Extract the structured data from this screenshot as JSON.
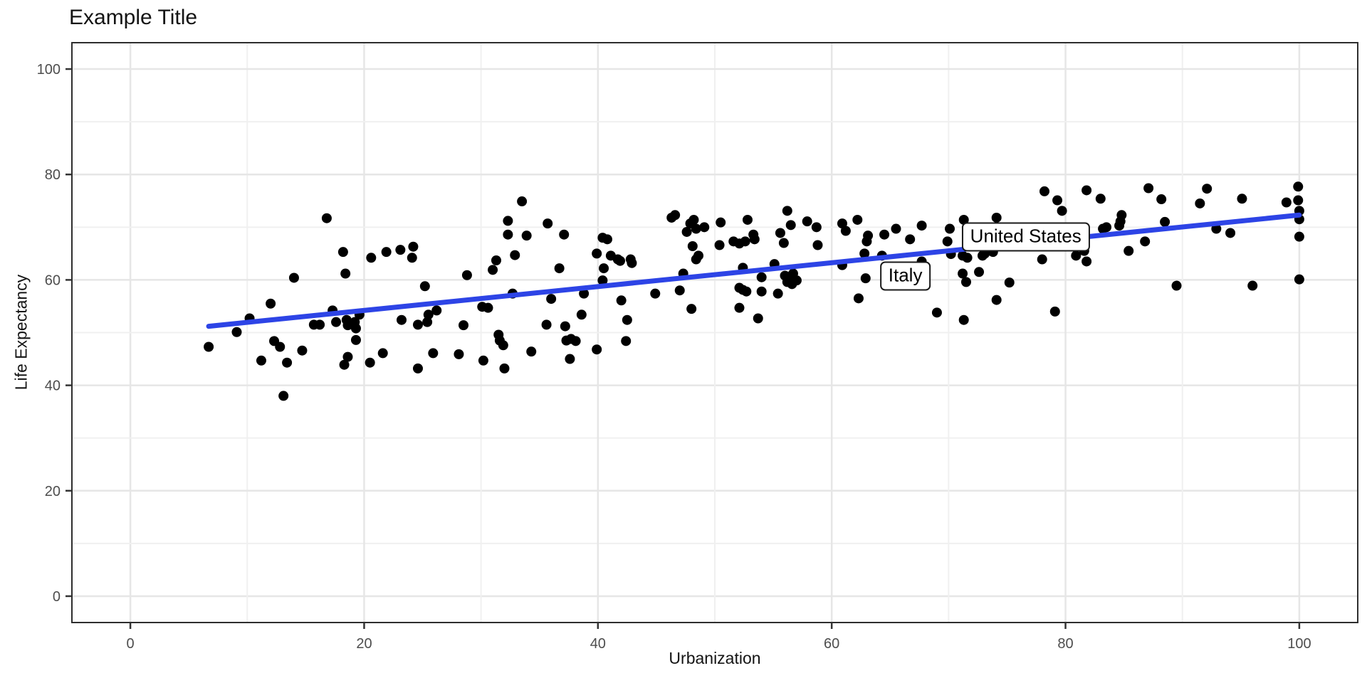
{
  "title": "Example Title",
  "colors": {
    "background": "#ffffff",
    "point": "#000000",
    "trend_line": "#2d44e6",
    "grid_major": "#e6e6e6",
    "grid_minor": "#f0f0f0",
    "panel_border": "#2e2e2e",
    "tick": "#333333",
    "tick_label": "#4d4d4d",
    "text": "#141414",
    "annotation_bg": "#ffffff",
    "annotation_border": "#1a1a1a"
  },
  "chart_data": {
    "type": "scatter",
    "title": "Example Title",
    "xlabel": "Urbanization",
    "ylabel": "Life Expectancy",
    "xlim": [
      -5,
      105
    ],
    "ylim": [
      -5,
      105
    ],
    "x_ticks": [
      0,
      20,
      40,
      60,
      80,
      100
    ],
    "y_ticks": [
      0,
      20,
      40,
      60,
      80,
      100
    ],
    "grid_step": 10,
    "grid_major_every": 20,
    "legend": "none",
    "point_radius": 7,
    "trend_line": {
      "x_start": 6.7,
      "y_start": 51.2,
      "x_end": 100,
      "y_end": 72.3,
      "width": 7
    },
    "annotations": [
      {
        "label": "United States",
        "x": 76.6,
        "y": 68.1
      },
      {
        "label": "Italy",
        "x": 66.3,
        "y": 60.7
      }
    ],
    "points": [
      [
        6.7,
        47.3
      ],
      [
        9.1,
        50.1
      ],
      [
        10.2,
        52.7
      ],
      [
        11.2,
        44.7
      ],
      [
        12,
        55.5
      ],
      [
        12.3,
        48.4
      ],
      [
        12.8,
        47.3
      ],
      [
        13.1,
        38
      ],
      [
        13.4,
        44.3
      ],
      [
        14,
        60.4
      ],
      [
        14.7,
        46.6
      ],
      [
        15.7,
        51.5
      ],
      [
        16.2,
        51.5
      ],
      [
        16.8,
        71.7
      ],
      [
        17.3,
        54.2
      ],
      [
        17.6,
        52
      ],
      [
        18.2,
        65.3
      ],
      [
        18.3,
        43.9
      ],
      [
        18.4,
        61.2
      ],
      [
        18.5,
        52.4
      ],
      [
        18.6,
        51.4
      ],
      [
        18.6,
        45.4
      ],
      [
        19.2,
        52
      ],
      [
        19.3,
        50.8
      ],
      [
        19.3,
        48.6
      ],
      [
        19.6,
        53.4
      ],
      [
        20.5,
        44.3
      ],
      [
        20.6,
        64.2
      ],
      [
        21.6,
        46.1
      ],
      [
        21.9,
        65.3
      ],
      [
        23.1,
        65.7
      ],
      [
        23.2,
        52.4
      ],
      [
        24.1,
        64.2
      ],
      [
        24.2,
        66.3
      ],
      [
        24.6,
        51.5
      ],
      [
        24.6,
        43.2
      ],
      [
        25.2,
        58.8
      ],
      [
        25.4,
        52
      ],
      [
        25.5,
        53.4
      ],
      [
        25.9,
        46.1
      ],
      [
        26.2,
        54.2
      ],
      [
        28.1,
        45.9
      ],
      [
        28.5,
        51.4
      ],
      [
        28.8,
        60.9
      ],
      [
        30.1,
        54.9
      ],
      [
        30.2,
        44.7
      ],
      [
        30.6,
        54.7
      ],
      [
        31,
        61.9
      ],
      [
        31.3,
        63.7
      ],
      [
        31.5,
        49.6
      ],
      [
        31.6,
        48.5
      ],
      [
        31.9,
        47.6
      ],
      [
        32,
        43.2
      ],
      [
        32.3,
        71.2
      ],
      [
        32.3,
        68.6
      ],
      [
        32.7,
        57.4
      ],
      [
        32.9,
        64.7
      ],
      [
        33.5,
        74.9
      ],
      [
        33.9,
        68.4
      ],
      [
        34.3,
        46.4
      ],
      [
        35.6,
        51.5
      ],
      [
        35.7,
        70.7
      ],
      [
        36,
        56.4
      ],
      [
        36.7,
        62.2
      ],
      [
        37.1,
        68.6
      ],
      [
        37.2,
        51.2
      ],
      [
        37.3,
        48.5
      ],
      [
        37.6,
        45
      ],
      [
        37.7,
        48.8
      ],
      [
        38.1,
        48.4
      ],
      [
        38.6,
        53.4
      ],
      [
        38.8,
        57.4
      ],
      [
        39.9,
        65
      ],
      [
        39.9,
        46.8
      ],
      [
        40.4,
        68
      ],
      [
        40.8,
        67.7
      ],
      [
        40.4,
        59.9
      ],
      [
        40.5,
        62.2
      ],
      [
        41.1,
        64.6
      ],
      [
        41.7,
        63.9
      ],
      [
        41.9,
        63.6
      ],
      [
        42,
        56.1
      ],
      [
        42.4,
        48.4
      ],
      [
        42.5,
        52.4
      ],
      [
        42.8,
        63.9
      ],
      [
        42.9,
        63.2
      ],
      [
        44.9,
        57.4
      ],
      [
        46.3,
        71.8
      ],
      [
        46.6,
        72.3
      ],
      [
        47,
        58
      ],
      [
        47.3,
        61.2
      ],
      [
        47.6,
        69.1
      ],
      [
        47.9,
        70.7
      ],
      [
        48,
        54.5
      ],
      [
        48.1,
        66.4
      ],
      [
        48.2,
        71.4
      ],
      [
        48.4,
        69.7
      ],
      [
        48.4,
        63.9
      ],
      [
        48.6,
        64.6
      ],
      [
        49.1,
        70
      ],
      [
        50.4,
        66.6
      ],
      [
        50.5,
        70.9
      ],
      [
        51.6,
        67.3
      ],
      [
        52.1,
        66.9
      ],
      [
        52.1,
        58.5
      ],
      [
        52.1,
        54.7
      ],
      [
        52.4,
        62.3
      ],
      [
        52.4,
        58.1
      ],
      [
        52.6,
        67.3
      ],
      [
        52.7,
        57.8
      ],
      [
        52.8,
        71.4
      ],
      [
        53.3,
        68.6
      ],
      [
        53.4,
        67.7
      ],
      [
        53.7,
        52.7
      ],
      [
        54,
        60.5
      ],
      [
        54,
        57.8
      ],
      [
        55.1,
        63
      ],
      [
        55.4,
        57.4
      ],
      [
        55.6,
        68.9
      ],
      [
        55.9,
        67
      ],
      [
        56,
        60.8
      ],
      [
        56.2,
        73.1
      ],
      [
        56.2,
        59.6
      ],
      [
        56.3,
        60.3
      ],
      [
        56.5,
        70.4
      ],
      [
        56.6,
        59.2
      ],
      [
        56.7,
        61.2
      ],
      [
        57,
        59.9
      ],
      [
        57.9,
        71.1
      ],
      [
        58.7,
        70
      ],
      [
        58.8,
        66.6
      ],
      [
        60.9,
        70.7
      ],
      [
        60.9,
        62.8
      ],
      [
        61.2,
        69.3
      ],
      [
        62.2,
        71.4
      ],
      [
        62.3,
        56.5
      ],
      [
        62.8,
        65
      ],
      [
        62.9,
        60.3
      ],
      [
        63,
        67.3
      ],
      [
        63.1,
        68.4
      ],
      [
        64.3,
        64.6
      ],
      [
        64.5,
        68.6
      ],
      [
        65.5,
        69.7
      ],
      [
        66.7,
        67.7
      ],
      [
        67.7,
        70.3
      ],
      [
        67.7,
        63.5
      ],
      [
        69,
        53.8
      ],
      [
        69.9,
        67.3
      ],
      [
        70.1,
        69.7
      ],
      [
        70.2,
        64.9
      ],
      [
        71.2,
        64.6
      ],
      [
        71.2,
        61.2
      ],
      [
        71.3,
        71.4
      ],
      [
        71.3,
        52.4
      ],
      [
        71.5,
        59.6
      ],
      [
        71.6,
        64.2
      ],
      [
        72.6,
        61.5
      ],
      [
        72.9,
        64.6
      ],
      [
        73.1,
        65
      ],
      [
        73.8,
        65.3
      ],
      [
        74.1,
        71.8
      ],
      [
        74.1,
        56.2
      ],
      [
        75.2,
        59.5
      ],
      [
        78,
        63.9
      ],
      [
        78.2,
        76.8
      ],
      [
        79.1,
        54
      ],
      [
        79.3,
        75.1
      ],
      [
        79.7,
        73.1
      ],
      [
        80.9,
        64.6
      ],
      [
        81.6,
        65.5
      ],
      [
        81.8,
        77
      ],
      [
        81.8,
        63.5
      ],
      [
        83,
        75.4
      ],
      [
        83.2,
        69.7
      ],
      [
        83.5,
        70
      ],
      [
        84.6,
        70.3
      ],
      [
        84.7,
        71.1
      ],
      [
        84.8,
        72.3
      ],
      [
        85.4,
        65.5
      ],
      [
        86.8,
        67.3
      ],
      [
        87.1,
        77.4
      ],
      [
        88.2,
        75.3
      ],
      [
        88.5,
        71
      ],
      [
        89.5,
        58.9
      ],
      [
        91.5,
        74.5
      ],
      [
        92.1,
        77.3
      ],
      [
        92.9,
        69.7
      ],
      [
        94.1,
        68.9
      ],
      [
        95.1,
        75.4
      ],
      [
        96,
        58.9
      ],
      [
        98.9,
        74.7
      ],
      [
        99.9,
        77.7
      ],
      [
        99.9,
        75.1
      ],
      [
        100,
        73.1
      ],
      [
        100,
        71.5
      ],
      [
        100,
        68.2
      ],
      [
        100,
        60.1
      ]
    ]
  }
}
